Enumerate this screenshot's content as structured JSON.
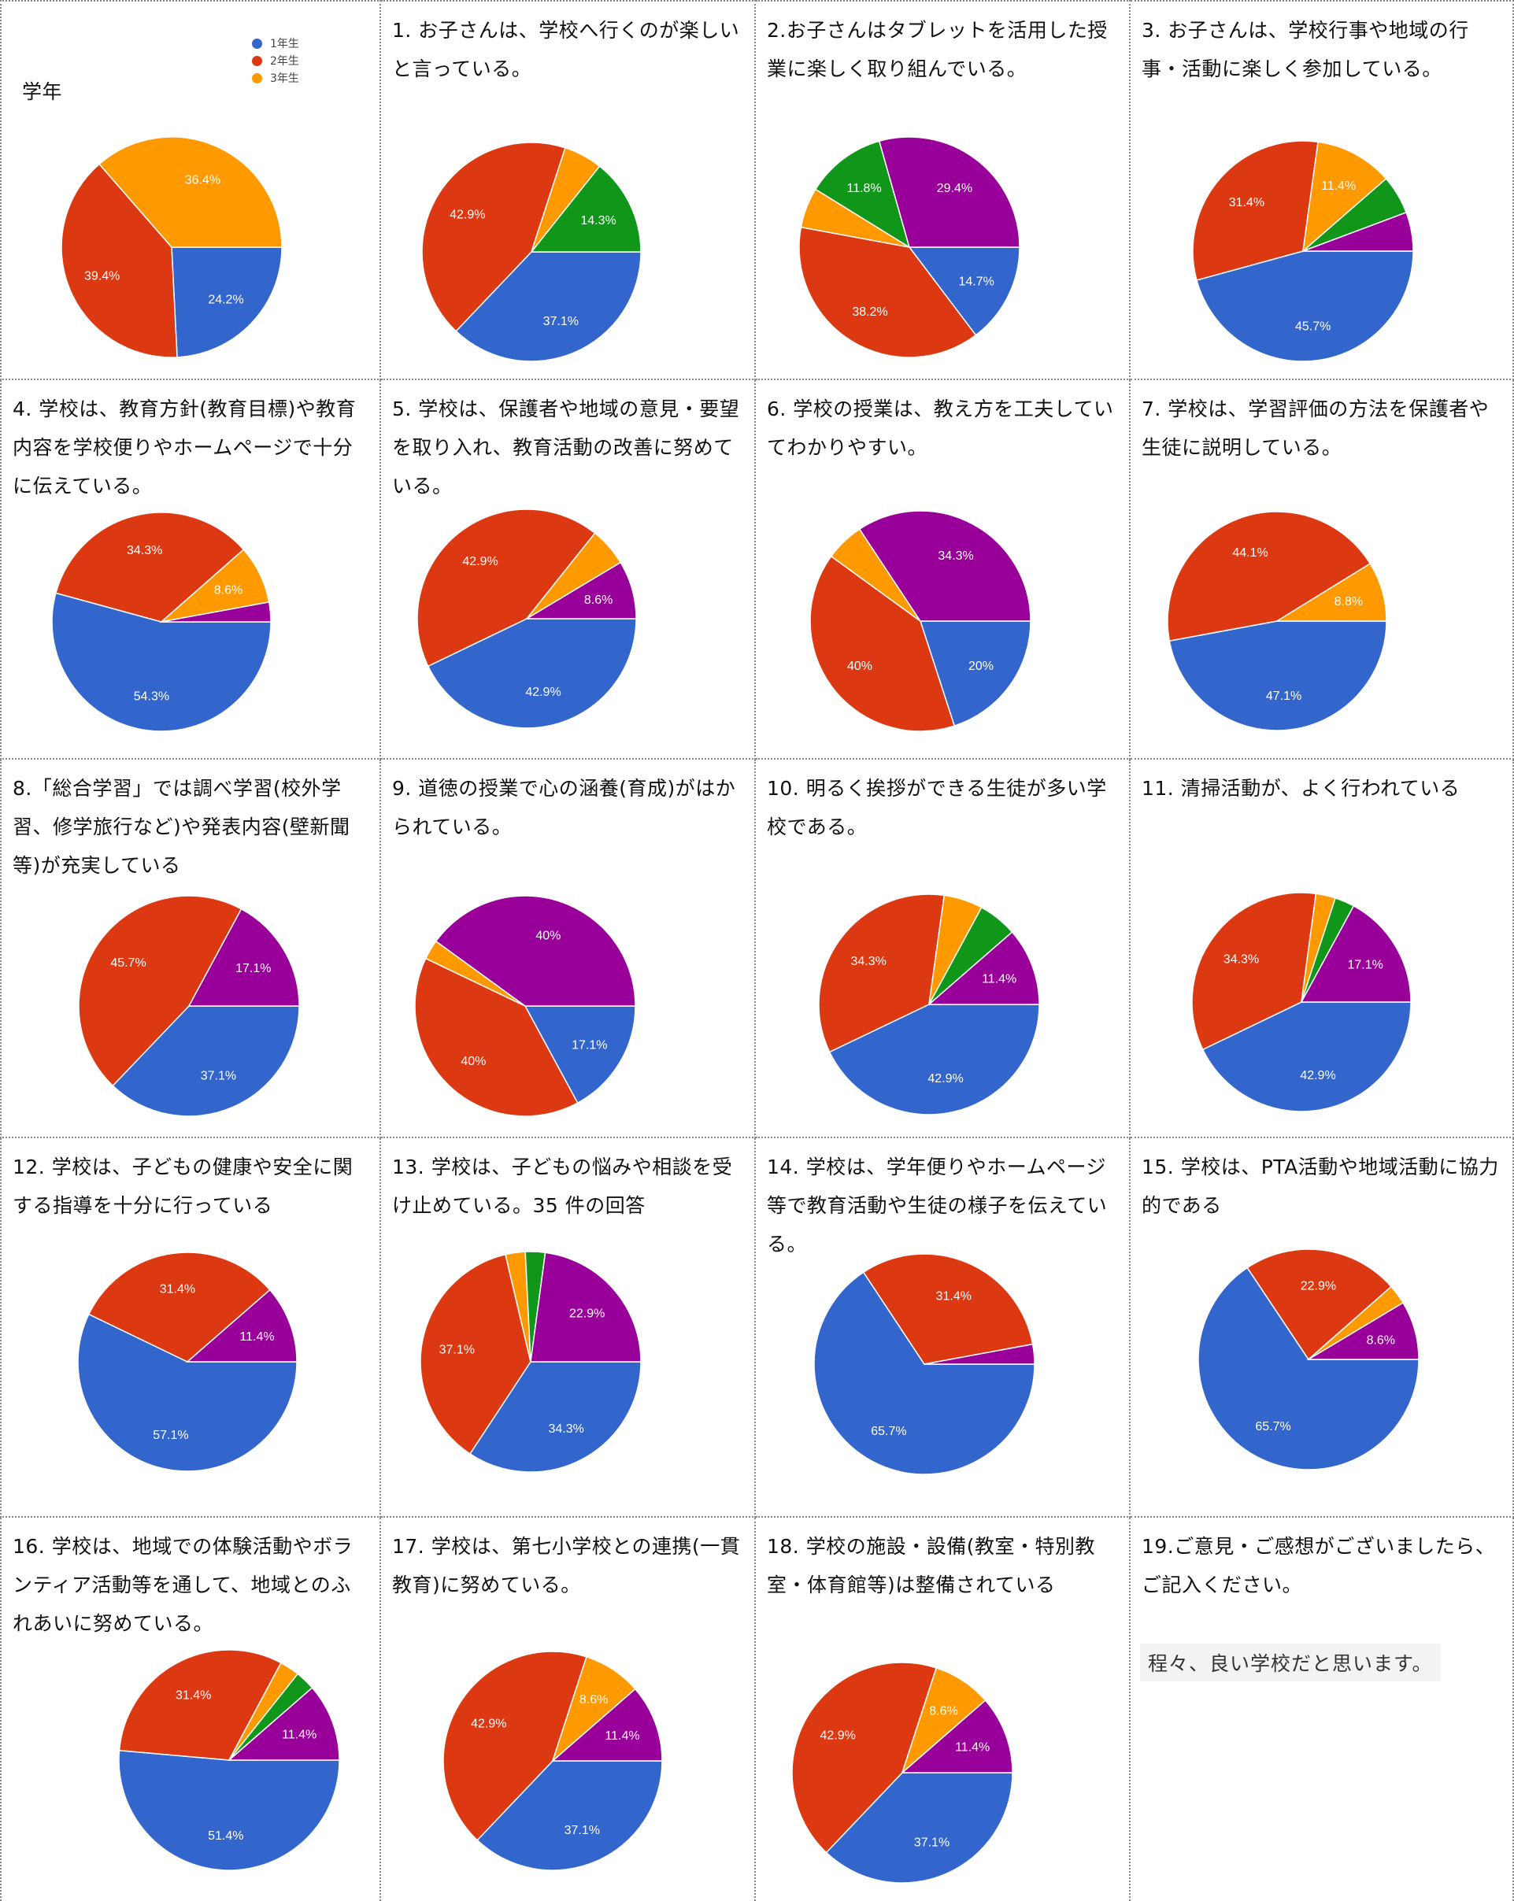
{
  "colors": {
    "blue": "#3366cc",
    "red": "#dc3912",
    "orange": "#ff9900",
    "green": "#109618",
    "purple": "#990099"
  },
  "legend": [
    {
      "label": "1年生",
      "color": "blue"
    },
    {
      "label": "2年生",
      "color": "red"
    },
    {
      "label": "3年生",
      "color": "orange"
    }
  ],
  "free_text": {
    "title": "19.ご意見・ご感想がございましたら、ご記入ください。",
    "answer": "程々、良い学校だと思います。"
  },
  "chart_data": [
    {
      "type": "pie",
      "title": "学年",
      "slices": [
        {
          "value": 24.2,
          "color": "blue",
          "label": "24.2%"
        },
        {
          "value": 39.4,
          "color": "red",
          "label": "39.4%"
        },
        {
          "value": 36.4,
          "color": "orange",
          "label": "36.4%"
        }
      ]
    },
    {
      "type": "pie",
      "title": "1. お子さんは、学校へ行くのが楽しいと言っている。",
      "slices": [
        {
          "value": 37.1,
          "color": "blue",
          "label": "37.1%"
        },
        {
          "value": 42.9,
          "color": "red",
          "label": "42.9%"
        },
        {
          "value": 5.7,
          "color": "orange",
          "label": ""
        },
        {
          "value": 14.3,
          "color": "green",
          "label": "14.3%"
        }
      ]
    },
    {
      "type": "pie",
      "title": "2.お子さんはタブレットを活用した授業に楽しく取り組んでいる。",
      "slices": [
        {
          "value": 14.7,
          "color": "blue",
          "label": "14.7%"
        },
        {
          "value": 38.2,
          "color": "red",
          "label": "38.2%"
        },
        {
          "value": 5.9,
          "color": "orange",
          "label": ""
        },
        {
          "value": 11.8,
          "color": "green",
          "label": "11.8%"
        },
        {
          "value": 29.4,
          "color": "purple",
          "label": "29.4%"
        }
      ]
    },
    {
      "type": "pie",
      "title": "3. お子さんは、学校行事や地域の行事・活動に楽しく参加している。",
      "slices": [
        {
          "value": 45.7,
          "color": "blue",
          "label": "45.7%"
        },
        {
          "value": 31.4,
          "color": "red",
          "label": "31.4%"
        },
        {
          "value": 11.4,
          "color": "orange",
          "label": "11.4%"
        },
        {
          "value": 5.7,
          "color": "green",
          "label": ""
        },
        {
          "value": 5.7,
          "color": "purple",
          "label": ""
        }
      ]
    },
    {
      "type": "pie",
      "title": "4. 学校は、教育方針(教育目標)や教育内容を学校便りやホームページで十分に伝えている。",
      "slices": [
        {
          "value": 54.3,
          "color": "blue",
          "label": "54.3%"
        },
        {
          "value": 34.3,
          "color": "red",
          "label": "34.3%"
        },
        {
          "value": 8.6,
          "color": "orange",
          "label": "8.6%"
        },
        {
          "value": 2.9,
          "color": "purple",
          "label": ""
        }
      ]
    },
    {
      "type": "pie",
      "title": "5. 学校は、保護者や地域の意見・要望を取り入れ、教育活動の改善に努めている。",
      "slices": [
        {
          "value": 42.9,
          "color": "blue",
          "label": "42.9%"
        },
        {
          "value": 42.9,
          "color": "red",
          "label": "42.9%"
        },
        {
          "value": 5.7,
          "color": "orange",
          "label": ""
        },
        {
          "value": 8.6,
          "color": "purple",
          "label": "8.6%"
        }
      ]
    },
    {
      "type": "pie",
      "title": "6. 学校の授業は、教え方を工夫していてわかりやすい。",
      "slices": [
        {
          "value": 20,
          "color": "blue",
          "label": "20%"
        },
        {
          "value": 40,
          "color": "red",
          "label": "40%"
        },
        {
          "value": 5.7,
          "color": "orange",
          "label": ""
        },
        {
          "value": 34.3,
          "color": "purple",
          "label": "34.3%"
        }
      ]
    },
    {
      "type": "pie",
      "title": "7. 学校は、学習評価の方法を保護者や生徒に説明している。",
      "slices": [
        {
          "value": 47.1,
          "color": "blue",
          "label": "47.1%"
        },
        {
          "value": 44.1,
          "color": "red",
          "label": "44.1%"
        },
        {
          "value": 8.8,
          "color": "orange",
          "label": "8.8%"
        }
      ]
    },
    {
      "type": "pie",
      "title": "8.「総合学習」では調べ学習(校外学習、修学旅行など)や発表内容(壁新聞等)が充実している",
      "slices": [
        {
          "value": 37.1,
          "color": "blue",
          "label": "37.1%"
        },
        {
          "value": 45.7,
          "color": "red",
          "label": "45.7%"
        },
        {
          "value": 17.1,
          "color": "purple",
          "label": "17.1%"
        }
      ]
    },
    {
      "type": "pie",
      "title": "9. 道徳の授業で心の涵養(育成)がはかられている。",
      "slices": [
        {
          "value": 17.1,
          "color": "blue",
          "label": "17.1%"
        },
        {
          "value": 40,
          "color": "red",
          "label": "40%"
        },
        {
          "value": 2.9,
          "color": "orange",
          "label": ""
        },
        {
          "value": 40,
          "color": "purple",
          "label": "40%"
        }
      ]
    },
    {
      "type": "pie",
      "title": "10. 明るく挨拶ができる生徒が多い学校である。",
      "slices": [
        {
          "value": 42.9,
          "color": "blue",
          "label": "42.9%"
        },
        {
          "value": 34.3,
          "color": "red",
          "label": "34.3%"
        },
        {
          "value": 5.7,
          "color": "orange",
          "label": ""
        },
        {
          "value": 5.7,
          "color": "green",
          "label": ""
        },
        {
          "value": 11.4,
          "color": "purple",
          "label": "11.4%"
        }
      ]
    },
    {
      "type": "pie",
      "title": "11. 清掃活動が、よく行われている",
      "slices": [
        {
          "value": 42.9,
          "color": "blue",
          "label": "42.9%"
        },
        {
          "value": 34.3,
          "color": "red",
          "label": "34.3%"
        },
        {
          "value": 2.9,
          "color": "orange",
          "label": ""
        },
        {
          "value": 2.9,
          "color": "green",
          "label": ""
        },
        {
          "value": 17.1,
          "color": "purple",
          "label": "17.1%"
        }
      ]
    },
    {
      "type": "pie",
      "title": "12. 学校は、子どもの健康や安全に関する指導を十分に行っている",
      "slices": [
        {
          "value": 57.1,
          "color": "blue",
          "label": "57.1%"
        },
        {
          "value": 31.4,
          "color": "red",
          "label": "31.4%"
        },
        {
          "value": 11.4,
          "color": "purple",
          "label": "11.4%"
        }
      ]
    },
    {
      "type": "pie",
      "title": "13. 学校は、子どもの悩みや相談を受け止めている。35 件の回答",
      "slices": [
        {
          "value": 34.3,
          "color": "blue",
          "label": "34.3%"
        },
        {
          "value": 37.1,
          "color": "red",
          "label": "37.1%"
        },
        {
          "value": 2.9,
          "color": "orange",
          "label": ""
        },
        {
          "value": 2.9,
          "color": "green",
          "label": ""
        },
        {
          "value": 22.9,
          "color": "purple",
          "label": "22.9%"
        }
      ]
    },
    {
      "type": "pie",
      "title": "14. 学校は、学年便りやホームページ等で教育活動や生徒の様子を伝えている。",
      "slices": [
        {
          "value": 65.7,
          "color": "blue",
          "label": "65.7%"
        },
        {
          "value": 31.4,
          "color": "red",
          "label": "31.4%"
        },
        {
          "value": 2.9,
          "color": "purple",
          "label": ""
        }
      ]
    },
    {
      "type": "pie",
      "title": "15. 学校は、PTA活動や地域活動に協力的である",
      "slices": [
        {
          "value": 65.7,
          "color": "blue",
          "label": "65.7%"
        },
        {
          "value": 22.9,
          "color": "red",
          "label": "22.9%"
        },
        {
          "value": 2.9,
          "color": "orange",
          "label": ""
        },
        {
          "value": 8.6,
          "color": "purple",
          "label": "8.6%"
        }
      ]
    },
    {
      "type": "pie",
      "title": "16. 学校は、地域での体験活動やボランティア活動等を通して、地域とのふれあいに努めている。",
      "slices": [
        {
          "value": 51.4,
          "color": "blue",
          "label": "51.4%"
        },
        {
          "value": 31.4,
          "color": "red",
          "label": "31.4%"
        },
        {
          "value": 2.9,
          "color": "orange",
          "label": ""
        },
        {
          "value": 2.9,
          "color": "green",
          "label": ""
        },
        {
          "value": 11.4,
          "color": "purple",
          "label": "11.4%"
        }
      ]
    },
    {
      "type": "pie",
      "title": "17. 学校は、第七小学校との連携(一貫教育)に努めている。",
      "slices": [
        {
          "value": 37.1,
          "color": "blue",
          "label": "37.1%"
        },
        {
          "value": 42.9,
          "color": "red",
          "label": "42.9%"
        },
        {
          "value": 8.6,
          "color": "orange",
          "label": "8.6%"
        },
        {
          "value": 11.4,
          "color": "purple",
          "label": "11.4%"
        }
      ]
    },
    {
      "type": "pie",
      "title": "18. 学校の施設・設備(教室・特別教室・体育館等)は整備されている",
      "slices": [
        {
          "value": 37.1,
          "color": "blue",
          "label": "37.1%"
        },
        {
          "value": 42.9,
          "color": "red",
          "label": "42.9%"
        },
        {
          "value": 8.6,
          "color": "orange",
          "label": "8.6%"
        },
        {
          "value": 11.4,
          "color": "purple",
          "label": "11.4%"
        }
      ]
    }
  ]
}
